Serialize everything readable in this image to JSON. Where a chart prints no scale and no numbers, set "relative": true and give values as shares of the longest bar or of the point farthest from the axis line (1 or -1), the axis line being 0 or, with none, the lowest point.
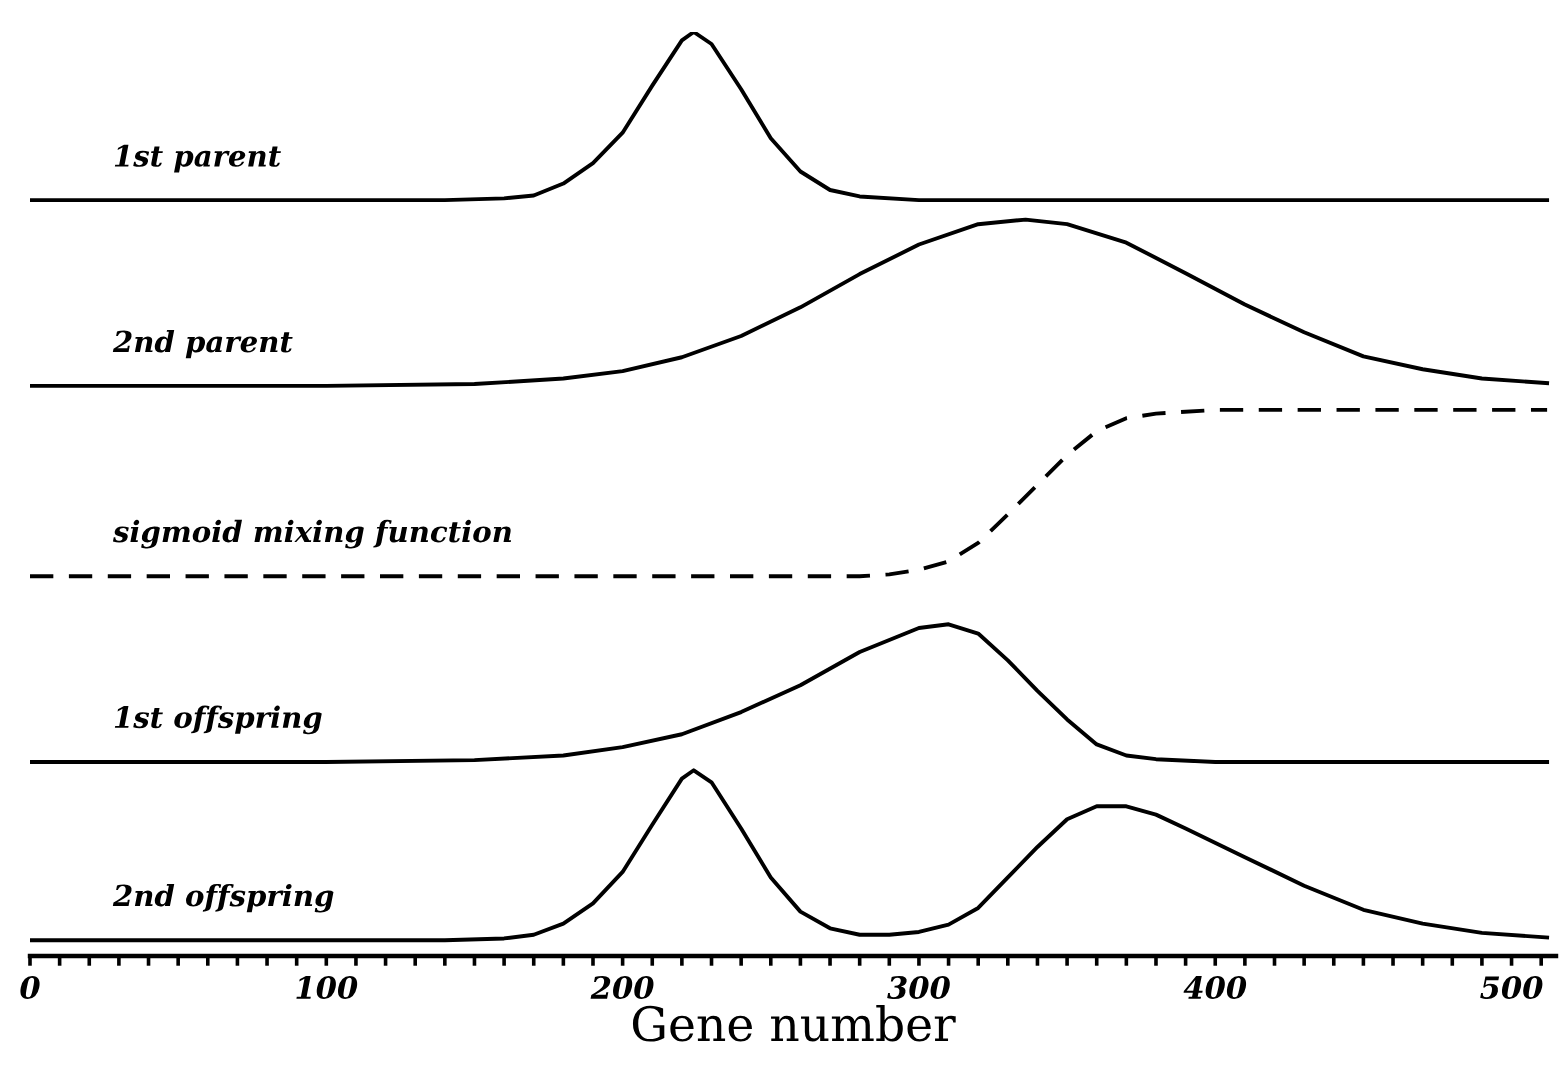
{
  "chart_data": {
    "type": "line",
    "relative": true,
    "xlim": [
      0,
      515
    ],
    "xlabel": "Gene number",
    "legend": false,
    "xticks": [
      0,
      {
        "value": 10,
        "label": null
      },
      {
        "value": 20,
        "label": null
      },
      {
        "value": 30,
        "label": null
      },
      {
        "value": 40,
        "label": null
      },
      {
        "value": 50,
        "label": null
      },
      {
        "value": 60,
        "label": null
      },
      {
        "value": 70,
        "label": null
      },
      {
        "value": 80,
        "label": null
      },
      {
        "value": 90,
        "label": null
      },
      100,
      {
        "value": 110,
        "label": null
      },
      {
        "value": 120,
        "label": null
      },
      {
        "value": 130,
        "label": null
      },
      {
        "value": 140,
        "label": null
      },
      {
        "value": 150,
        "label": null
      },
      {
        "value": 160,
        "label": null
      },
      {
        "value": 170,
        "label": null
      },
      {
        "value": 180,
        "label": null
      },
      {
        "value": 190,
        "label": null
      },
      200,
      {
        "value": 210,
        "label": null
      },
      {
        "value": 220,
        "label": null
      },
      {
        "value": 230,
        "label": null
      },
      {
        "value": 240,
        "label": null
      },
      {
        "value": 250,
        "label": null
      },
      {
        "value": 260,
        "label": null
      },
      {
        "value": 270,
        "label": null
      },
      {
        "value": 280,
        "label": null
      },
      {
        "value": 290,
        "label": null
      },
      300,
      {
        "value": 310,
        "label": null
      },
      {
        "value": 320,
        "label": null
      },
      {
        "value": 330,
        "label": null
      },
      {
        "value": 340,
        "label": null
      },
      {
        "value": 350,
        "label": null
      },
      {
        "value": 360,
        "label": null
      },
      {
        "value": 370,
        "label": null
      },
      {
        "value": 380,
        "label": null
      },
      {
        "value": 390,
        "label": null
      },
      400,
      {
        "value": 410,
        "label": null
      },
      {
        "value": 420,
        "label": null
      },
      {
        "value": 430,
        "label": null
      },
      {
        "value": 440,
        "label": null
      },
      {
        "value": 450,
        "label": null
      },
      {
        "value": 460,
        "label": null
      },
      {
        "value": 470,
        "label": null
      },
      {
        "value": 480,
        "label": null
      },
      {
        "value": 490,
        "label": null
      },
      500,
      {
        "value": 510,
        "label": null
      }
    ],
    "series": [
      {
        "name": "1st parent",
        "color": "#000000",
        "line_style": "solid",
        "x": [
          0,
          140,
          160,
          170,
          180,
          190,
          200,
          210,
          220,
          224,
          230,
          240,
          250,
          260,
          270,
          280,
          300,
          512
        ],
        "values": [
          0.818,
          0.818,
          0.82,
          0.823,
          0.836,
          0.858,
          0.891,
          0.942,
          0.991,
          1.0,
          0.987,
          0.938,
          0.885,
          0.849,
          0.829,
          0.822,
          0.818,
          0.818
        ]
      },
      {
        "name": "2nd parent",
        "color": "#000000",
        "line_style": "solid",
        "x": [
          0,
          100,
          150,
          180,
          200,
          220,
          240,
          260,
          280,
          300,
          320,
          336,
          350,
          370,
          390,
          410,
          430,
          450,
          470,
          490,
          512
        ],
        "values": [
          0.617,
          0.617,
          0.619,
          0.625,
          0.633,
          0.648,
          0.671,
          0.702,
          0.738,
          0.77,
          0.792,
          0.797,
          0.792,
          0.772,
          0.739,
          0.705,
          0.675,
          0.649,
          0.635,
          0.625,
          0.62
        ]
      },
      {
        "name": "sigmoid mixing function",
        "color": "#000000",
        "line_style": "dashed",
        "x": [
          0,
          280,
          290,
          300,
          310,
          320,
          330,
          340,
          350,
          360,
          370,
          380,
          400,
          512
        ],
        "values": [
          0.411,
          0.411,
          0.413,
          0.418,
          0.427,
          0.447,
          0.478,
          0.51,
          0.542,
          0.568,
          0.582,
          0.587,
          0.591,
          0.591
        ]
      },
      {
        "name": "1st offspring",
        "color": "#000000",
        "line_style": "solid",
        "x": [
          0,
          100,
          150,
          180,
          200,
          220,
          240,
          260,
          280,
          300,
          310,
          320,
          330,
          340,
          350,
          360,
          370,
          380,
          400,
          512
        ],
        "values": [
          0.21,
          0.21,
          0.212,
          0.217,
          0.226,
          0.24,
          0.264,
          0.293,
          0.329,
          0.355,
          0.359,
          0.349,
          0.32,
          0.287,
          0.256,
          0.229,
          0.217,
          0.213,
          0.21,
          0.21
        ]
      },
      {
        "name": "2nd offspring",
        "color": "#000000",
        "line_style": "solid",
        "x": [
          0,
          140,
          160,
          170,
          180,
          190,
          200,
          210,
          220,
          224,
          230,
          240,
          250,
          260,
          270,
          280,
          290,
          300,
          310,
          320,
          330,
          340,
          350,
          360,
          370,
          380,
          390,
          410,
          430,
          450,
          470,
          490,
          512
        ],
        "values": [
          0.017,
          0.017,
          0.019,
          0.023,
          0.035,
          0.057,
          0.091,
          0.142,
          0.192,
          0.201,
          0.188,
          0.138,
          0.085,
          0.048,
          0.03,
          0.023,
          0.023,
          0.026,
          0.034,
          0.052,
          0.085,
          0.118,
          0.148,
          0.162,
          0.162,
          0.153,
          0.138,
          0.107,
          0.076,
          0.05,
          0.035,
          0.025,
          0.02
        ]
      }
    ]
  }
}
